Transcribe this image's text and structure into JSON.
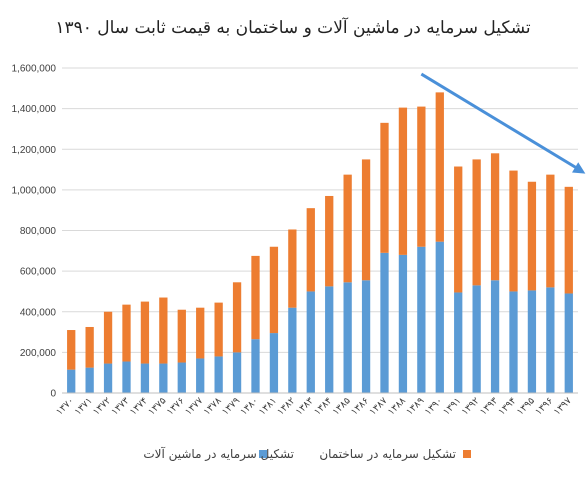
{
  "chart_data": {
    "type": "bar",
    "stacked": true,
    "title": "تشکیل سرمایه در ماشین آلات و ساختمان به قیمت ثابت سال ۱۳۹۰",
    "categories": [
      "۱۳۷۰",
      "۱۳۷۱",
      "۱۳۷۲",
      "۱۳۷۳",
      "۱۳۷۴",
      "۱۳۷۵",
      "۱۳۷۶",
      "۱۳۷۷",
      "۱۳۷۸",
      "۱۳۷۹",
      "۱۳۸۰",
      "۱۳۸۱",
      "۱۳۸۲",
      "۱۳۸۳",
      "۱۳۸۴",
      "۱۳۸۵",
      "۱۳۸۶",
      "۱۳۸۷",
      "۱۳۸۸",
      "۱۳۸۹",
      "۱۳۹۰",
      "۱۳۹۱",
      "۱۳۹۲",
      "۱۳۹۳",
      "۱۳۹۴",
      "۱۳۹۵",
      "۱۳۹۶",
      "۱۳۹۷"
    ],
    "x_tick_labels": [
      "۱۳۷۰",
      "۱۳۷۱",
      "۱۳۷۲",
      "۱۳۷۳",
      "۱۳۷۴",
      "۱۳۷۵",
      "۱۳۷۶",
      "۱۳۷۷",
      "۱۳۷۸",
      "۱۳۷۹",
      "۱۳۸۰",
      "۱۳۸۱",
      "۱۳۸۲",
      "۱۳۸۳",
      "۱۳۸۴",
      "۱۳۸۵",
      "۱۳۸۶",
      "۱۳۸۷",
      "۱۳۸۸",
      "۱۳۸۹",
      "۱۳۹۰",
      "۱۳۹۱",
      "۱۳۹۲",
      "۱۳۹۳",
      "۱۳۹۴",
      "۱۳۹۵",
      "۱۳۹۶",
      "۱۳۹۷"
    ],
    "series": [
      {
        "name": "تشکیل سرمایه در ماشین آلات",
        "color": "#5b9bd5",
        "values": [
          115000,
          125000,
          145000,
          155000,
          145000,
          145000,
          150000,
          170000,
          180000,
          200000,
          265000,
          295000,
          420000,
          500000,
          525000,
          545000,
          555000,
          690000,
          680000,
          720000,
          745000,
          495000,
          530000,
          555000,
          500000,
          505000,
          520000,
          490000
        ]
      },
      {
        "name": "تشکیل سرمایه در ساختمان",
        "color": "#ed7d31",
        "values": [
          195000,
          200000,
          255000,
          280000,
          305000,
          325000,
          260000,
          250000,
          265000,
          345000,
          410000,
          425000,
          385000,
          410000,
          445000,
          530000,
          595000,
          640000,
          725000,
          690000,
          735000,
          620000,
          620000,
          625000,
          595000,
          535000,
          555000,
          525000
        ]
      }
    ],
    "ylim": [
      0,
      1600000
    ],
    "y_ticks": [
      0,
      200000,
      400000,
      600000,
      800000,
      1000000,
      1200000,
      1400000,
      1600000
    ],
    "y_tick_labels": [
      "0",
      "200,000",
      "400,000",
      "600,000",
      "800,000",
      "1,000,000",
      "1,200,000",
      "1,400,000",
      "1,600,000"
    ],
    "grid": true,
    "legend": "bottom",
    "annotations": [
      {
        "type": "trend-arrow",
        "direction": "down",
        "from": {
          "x": "۱۳۸۹",
          "y": 1570000
        },
        "to": {
          "x": "۱۳۹۷",
          "y": 1080000
        },
        "color": "#4a90d9"
      }
    ]
  }
}
